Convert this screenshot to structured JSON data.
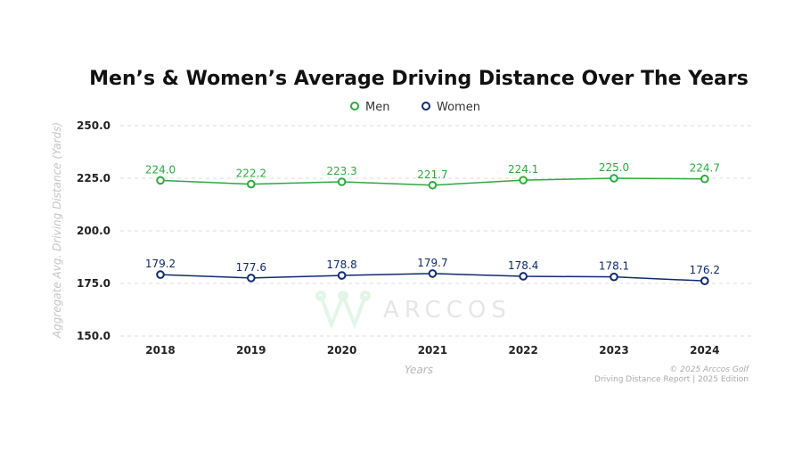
{
  "chart_data": {
    "type": "line",
    "title": "Men’s & Women’s Average Driving Distance Over The Years",
    "xlabel": "Years",
    "ylabel": "Aggregate Avg. Driving Distance (Yards)",
    "categories": [
      "2018",
      "2019",
      "2020",
      "2021",
      "2022",
      "2023",
      "2024"
    ],
    "ylim": [
      150,
      250
    ],
    "yticks": [
      "150.0",
      "175.0",
      "200.0",
      "225.0",
      "250.0"
    ],
    "grid": true,
    "legend_position": "top",
    "series": [
      {
        "name": "Men",
        "color": "#2ea83f",
        "values": [
          224.0,
          222.2,
          223.3,
          221.7,
          224.1,
          225.0,
          224.7
        ],
        "labels": [
          "224.0",
          "222.2",
          "223.3",
          "221.7",
          "224.1",
          "225.0",
          "224.7"
        ]
      },
      {
        "name": "Women",
        "color": "#0f2a6e",
        "values": [
          179.2,
          177.6,
          178.8,
          179.7,
          178.4,
          178.1,
          176.2
        ],
        "labels": [
          "179.2",
          "177.6",
          "178.8",
          "179.7",
          "178.4",
          "178.1",
          "176.2"
        ]
      }
    ]
  },
  "watermark": "ARCCOS",
  "footer": {
    "copyright": "© 2025 Arccos Golf",
    "edition": "Driving Distance Report | 2025 Edition"
  }
}
